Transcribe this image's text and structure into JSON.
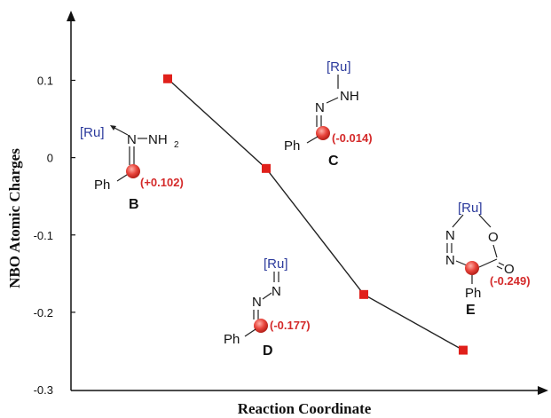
{
  "chart_data": {
    "type": "line",
    "ylabel": "NBO Atomic Charges",
    "xlabel": "Reaction Coordinate",
    "ylim": [
      -0.3,
      0.15
    ],
    "yticks": [
      "0.1",
      "0",
      "-0.1",
      "-0.2",
      "-0.3"
    ],
    "ytick_values": [
      0.1,
      0,
      -0.1,
      -0.2,
      -0.3
    ],
    "series": [
      {
        "labels": [
          "B",
          "C",
          "D",
          "E"
        ],
        "values": [
          0.102,
          -0.014,
          -0.177,
          -0.249
        ],
        "color": "#e0201b"
      }
    ],
    "line_color": "#222222",
    "grid": false,
    "structures": [
      {
        "id": "B",
        "label": "B",
        "charge": "(+0.102)",
        "metal": "[Ru]",
        "atoms": [
          "N",
          "NH",
          "2",
          "Ph"
        ]
      },
      {
        "id": "C",
        "label": "C",
        "charge": "(-0.014)",
        "metal": "[Ru]",
        "atoms": [
          "N",
          "NH",
          "Ph"
        ]
      },
      {
        "id": "D",
        "label": "D",
        "charge": "(-0.177)",
        "metal": "[Ru]",
        "atoms": [
          "N",
          "N",
          "Ph"
        ]
      },
      {
        "id": "E",
        "label": "E",
        "charge": "(-0.249)",
        "metal": "[Ru]",
        "atoms": [
          "N",
          "N",
          "O",
          "O",
          "Ph"
        ]
      }
    ],
    "highlight_color": "#e8453c"
  }
}
